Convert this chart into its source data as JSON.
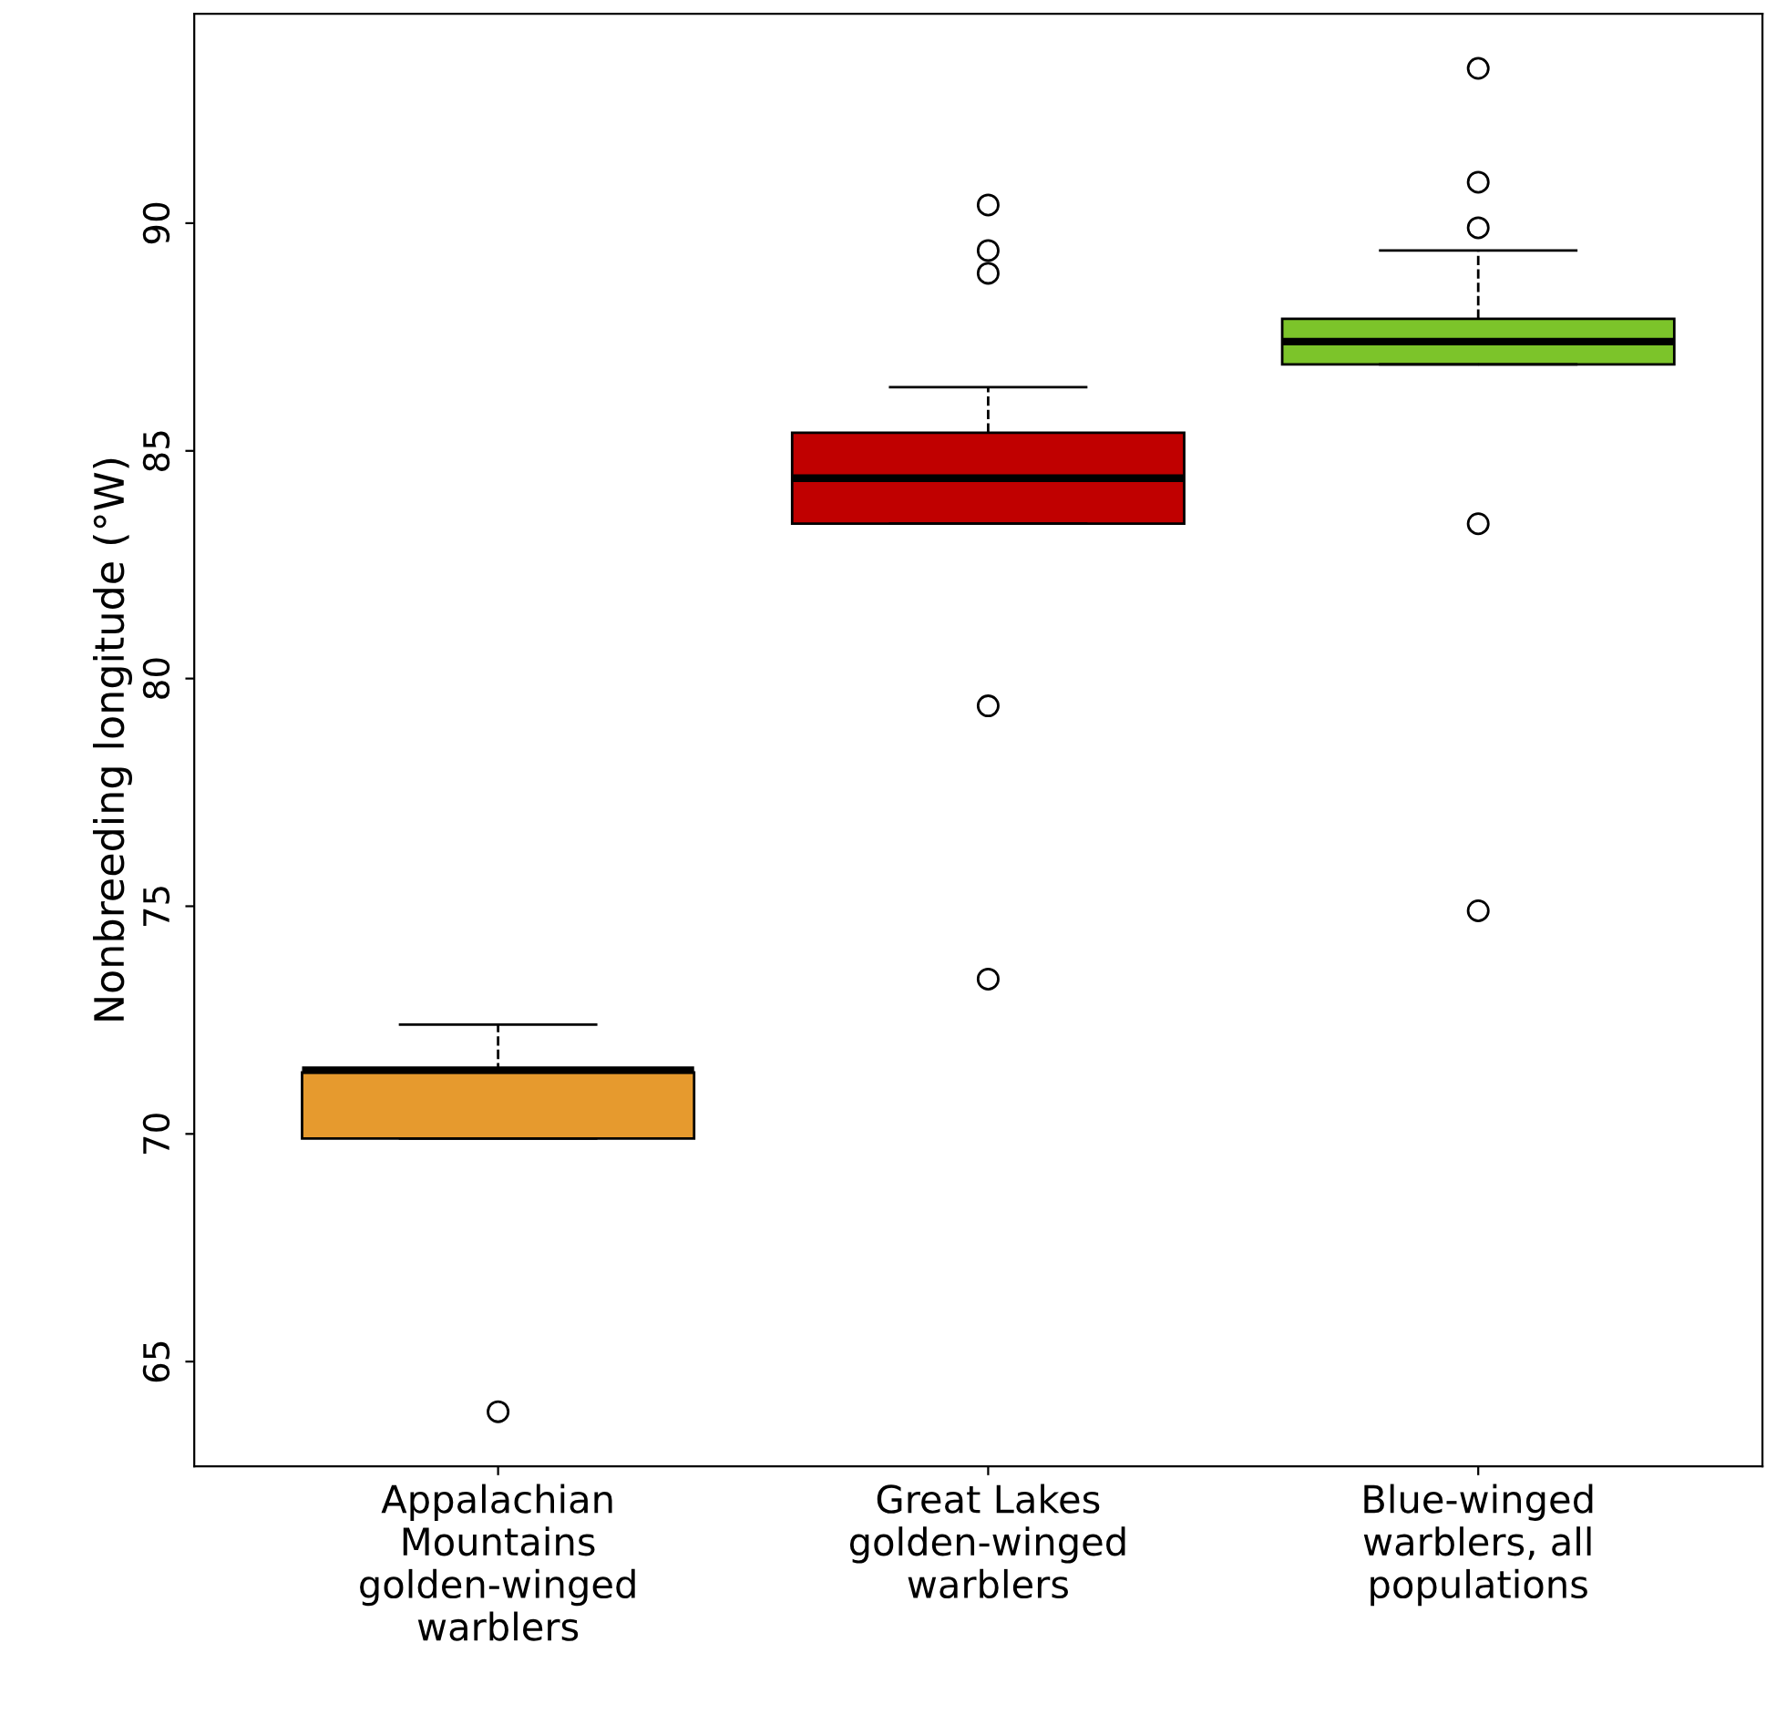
{
  "chart_data": {
    "type": "box",
    "ylabel": "Nonbreeding longitude (°W)",
    "categories": [
      "Appalachian\nMountains\ngolden-winged\nwarblers",
      "Great Lakes\ngolden-winged\nwarblers",
      "Blue-winged\nwarblers, all\npopulations"
    ],
    "colors": [
      "#e69a2e",
      "#c00000",
      "#7cc42a"
    ],
    "boxes": [
      {
        "low": 69.9,
        "q1": 69.9,
        "median": 71.4,
        "q3": 71.35,
        "high": 72.4,
        "outliers": [
          63.9
        ]
      },
      {
        "low": 83.4,
        "q1": 83.4,
        "median": 84.4,
        "q3": 85.4,
        "high": 86.4,
        "outliers": [
          90.4,
          89.4,
          88.9,
          79.4,
          73.4
        ]
      },
      {
        "low": 86.9,
        "q1": 86.9,
        "median": 87.4,
        "q3": 87.9,
        "high": 89.4,
        "outliers": [
          93.4,
          90.9,
          89.9,
          83.4,
          74.9
        ]
      }
    ],
    "ylim": [
      62.7,
      94.6
    ],
    "yticks": [
      65,
      70,
      75,
      80,
      85,
      90
    ],
    "grid": false
  }
}
